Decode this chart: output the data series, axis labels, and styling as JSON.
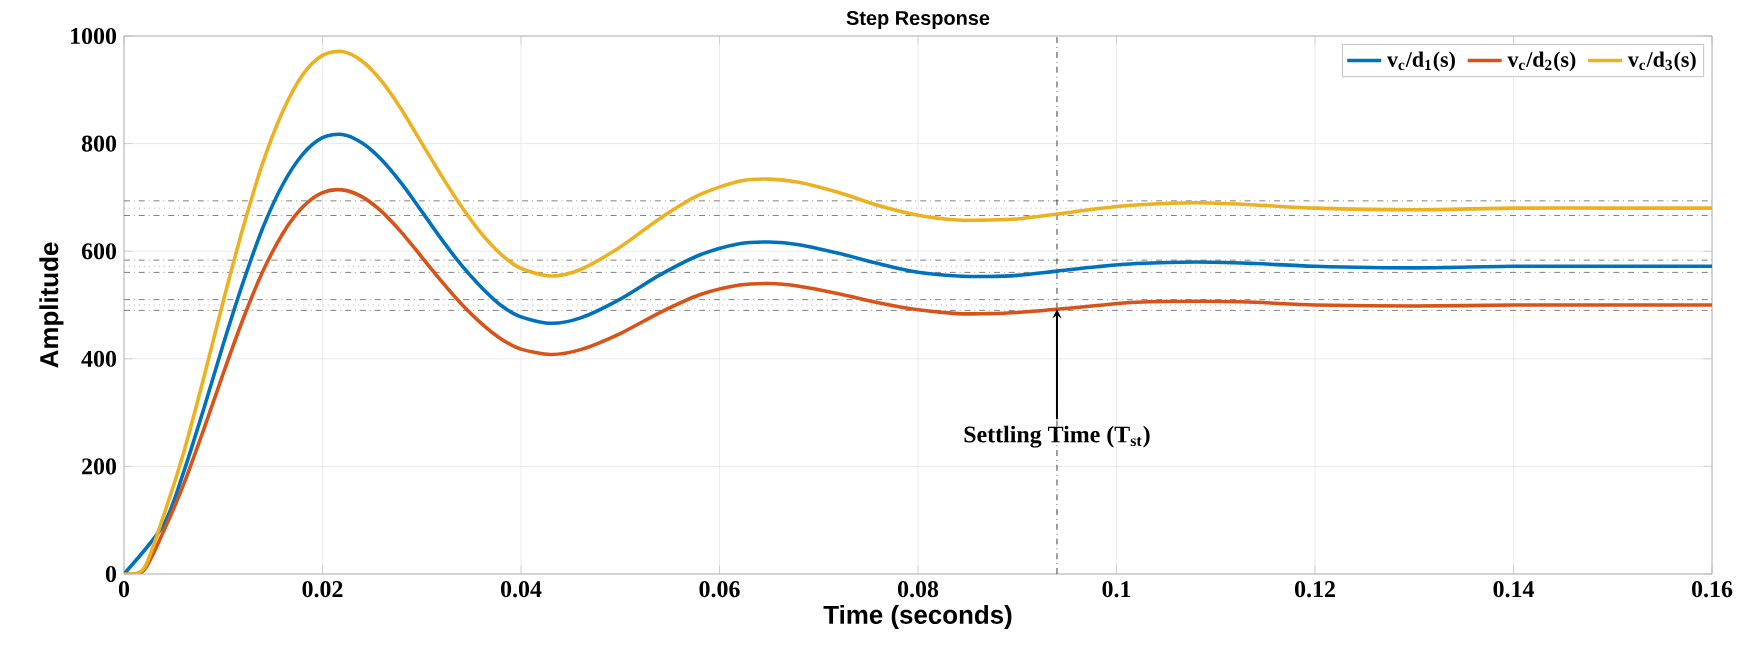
{
  "chart_data": {
    "type": "line",
    "title": "Step Response",
    "xlabel": "Time (seconds)",
    "ylabel": "Amplitude",
    "x": [
      0,
      0.002,
      0.004,
      0.006,
      0.008,
      0.01,
      0.012,
      0.014,
      0.016,
      0.018,
      0.02,
      0.022,
      0.024,
      0.026,
      0.028,
      0.03,
      0.032,
      0.034,
      0.036,
      0.038,
      0.04,
      0.043,
      0.046,
      0.05,
      0.054,
      0.058,
      0.062,
      0.065,
      0.068,
      0.072,
      0.076,
      0.08,
      0.084,
      0.087,
      0.09,
      0.094,
      0.098,
      0.102,
      0.108,
      0.114,
      0.12,
      0.13,
      0.14,
      0.15,
      0.16
    ],
    "series": [
      {
        "name": "v$_{c}$/d$_{1}$(s)",
        "color": "#0072bd",
        "x": [
          0,
          0.004,
          0.006,
          0.008,
          0.01,
          0.012,
          0.014,
          0.016,
          0.018,
          0.02,
          0.022,
          0.024,
          0.026,
          0.028,
          0.03,
          0.032,
          0.034,
          0.036,
          0.038,
          0.04,
          0.043,
          0.046,
          0.05,
          0.054,
          0.058,
          0.062,
          0.065,
          0.068,
          0.072,
          0.076,
          0.08,
          0.084,
          0.087,
          0.09,
          0.094,
          0.098,
          0.102,
          0.108,
          0.114,
          0.12,
          0.13,
          0.14,
          0.15,
          0.16
        ],
        "values": [
          0,
          92,
          189,
          305,
          427,
          542,
          644,
          724,
          780,
          811,
          817,
          801,
          769,
          725,
          674,
          622,
          574,
          533,
          499,
          478,
          466,
          476,
          511,
          556,
          593,
          614,
          617,
          612,
          596,
          577,
          561,
          554,
          553,
          555,
          563,
          571,
          577,
          580,
          577,
          572,
          569,
          572,
          572,
          572
        ]
      },
      {
        "name": "v$_{c}$/d$_{2}$(s)",
        "color": "#d95319",
        "values": [
          0,
          7,
          80,
          166,
          267,
          373,
          474,
          563,
          633,
          682,
          709,
          714,
          701,
          673,
          634,
          589,
          544,
          502,
          466,
          437,
          418,
          408,
          417,
          447,
          486,
          519,
          537,
          540,
          535,
          521,
          504,
          491,
          484,
          484,
          486,
          492,
          499,
          505,
          507,
          505,
          500,
          498,
          500,
          500,
          500
        ]
      },
      {
        "name": "v$_{c}$/d$_{3}$(s)",
        "color": "#edb120",
        "values": [
          0,
          10,
          109,
          225,
          362,
          507,
          644,
          765,
          860,
          928,
          964,
          971,
          953,
          915,
          862,
          801,
          740,
          683,
          633,
          594,
          568,
          554,
          566,
          608,
          661,
          705,
          730,
          734,
          728,
          709,
          685,
          667,
          658,
          658,
          660,
          669,
          679,
          686,
          690,
          686,
          680,
          677,
          680,
          680,
          680
        ]
      }
    ],
    "xlim": [
      0,
      0.16
    ],
    "xticks": [
      0,
      0.02,
      0.04,
      0.06,
      0.08,
      0.1,
      0.12,
      0.14,
      0.16
    ],
    "ylim": [
      0,
      1000
    ],
    "yticks": [
      0,
      200,
      400,
      600,
      800,
      1000
    ],
    "grid": true,
    "legend": "top right",
    "line_style": "solid",
    "marker": "none",
    "ref_lines": [
      {
        "axis": "y",
        "value": 693.6,
        "color": "#7f7f7f",
        "line_style": "dashdot"
      },
      {
        "axis": "y",
        "value": 680,
        "color": "#b0b0b0",
        "line_style": "dotted"
      },
      {
        "axis": "y",
        "value": 666.4,
        "color": "#7f7f7f",
        "line_style": "dashdot"
      },
      {
        "axis": "y",
        "value": 583.4,
        "color": "#7f7f7f",
        "line_style": "dashdot"
      },
      {
        "axis": "y",
        "value": 572,
        "color": "#b0b0b0",
        "line_style": "dotted"
      },
      {
        "axis": "y",
        "value": 560.6,
        "color": "#7f7f7f",
        "line_style": "dashdot"
      },
      {
        "axis": "y",
        "value": 510,
        "color": "#7f7f7f",
        "line_style": "dashdot"
      },
      {
        "axis": "y",
        "value": 500,
        "color": "#b0b0b0",
        "line_style": "dotted"
      },
      {
        "axis": "y",
        "value": 490,
        "color": "#7f7f7f",
        "line_style": "dashdot"
      },
      {
        "axis": "x",
        "value": 0.094,
        "color": "#404040",
        "line_style": "dashdot"
      }
    ],
    "annotations": [
      {
        "text": "Settling Time (T$_{st}$)",
        "x": 0.094,
        "y": 492
      }
    ]
  }
}
